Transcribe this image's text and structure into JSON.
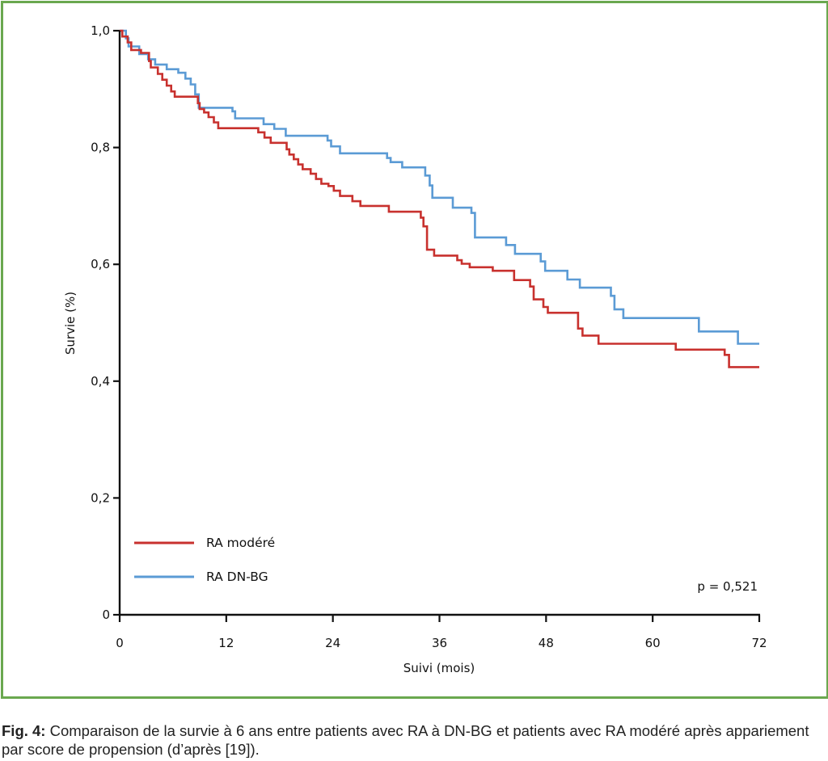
{
  "chart_data": {
    "type": "line",
    "subtype": "kaplan-meier-step",
    "title": "",
    "xlabel": "Suivi (mois)",
    "ylabel": "Survie (%)",
    "xlim": [
      0,
      72
    ],
    "ylim": [
      0,
      1.0
    ],
    "xticks": [
      0,
      12,
      24,
      36,
      48,
      60,
      72
    ],
    "xtick_labels": [
      "0",
      "12",
      "24",
      "36",
      "48",
      "60",
      "72"
    ],
    "yticks": [
      0,
      0.2,
      0.4,
      0.6,
      0.8,
      1.0
    ],
    "ytick_labels": [
      "0",
      "0,2",
      "0,4",
      "0,6",
      "0,8",
      "1,0"
    ],
    "grid": false,
    "legend_position": "bottom-left",
    "annotation": "p = 0,521",
    "series": [
      {
        "name": "RA modéré",
        "color": "#c8312e",
        "points": [
          [
            0,
            1.0
          ],
          [
            0.3,
            0.99
          ],
          [
            0.9,
            0.98
          ],
          [
            1.3,
            0.967
          ],
          [
            2.4,
            0.962
          ],
          [
            3.3,
            0.948
          ],
          [
            3.5,
            0.937
          ],
          [
            4.3,
            0.926
          ],
          [
            4.8,
            0.916
          ],
          [
            5.3,
            0.906
          ],
          [
            5.8,
            0.896
          ],
          [
            6.2,
            0.887
          ],
          [
            8.8,
            0.876
          ],
          [
            9.0,
            0.866
          ],
          [
            9.5,
            0.86
          ],
          [
            10.0,
            0.852
          ],
          [
            10.6,
            0.843
          ],
          [
            11.1,
            0.833
          ],
          [
            15.6,
            0.826
          ],
          [
            16.3,
            0.817
          ],
          [
            17.0,
            0.808
          ],
          [
            18.8,
            0.797
          ],
          [
            19.1,
            0.788
          ],
          [
            19.6,
            0.78
          ],
          [
            20.1,
            0.771
          ],
          [
            20.6,
            0.763
          ],
          [
            21.5,
            0.755
          ],
          [
            22.1,
            0.746
          ],
          [
            22.7,
            0.738
          ],
          [
            23.5,
            0.734
          ],
          [
            24.1,
            0.726
          ],
          [
            24.8,
            0.717
          ],
          [
            26.2,
            0.708
          ],
          [
            27.1,
            0.7
          ],
          [
            30.3,
            0.69
          ],
          [
            33.9,
            0.68
          ],
          [
            34.2,
            0.665
          ],
          [
            34.6,
            0.625
          ],
          [
            35.4,
            0.615
          ],
          [
            38.0,
            0.607
          ],
          [
            38.5,
            0.601
          ],
          [
            39.4,
            0.595
          ],
          [
            42.0,
            0.589
          ],
          [
            44.4,
            0.573
          ],
          [
            46.2,
            0.562
          ],
          [
            46.6,
            0.54
          ],
          [
            47.7,
            0.527
          ],
          [
            48.2,
            0.517
          ],
          [
            51.6,
            0.49
          ],
          [
            52.1,
            0.478
          ],
          [
            53.9,
            0.464
          ],
          [
            62.6,
            0.454
          ],
          [
            68.1,
            0.445
          ],
          [
            68.6,
            0.424
          ],
          [
            72.0,
            0.424
          ]
        ]
      },
      {
        "name": "RA DN-BG",
        "color": "#5b9bd5",
        "points": [
          [
            0,
            1.0
          ],
          [
            0.7,
            0.987
          ],
          [
            1.0,
            0.973
          ],
          [
            2.2,
            0.96
          ],
          [
            3.2,
            0.951
          ],
          [
            4.0,
            0.942
          ],
          [
            5.3,
            0.934
          ],
          [
            6.6,
            0.928
          ],
          [
            7.4,
            0.918
          ],
          [
            8.0,
            0.908
          ],
          [
            8.5,
            0.891
          ],
          [
            8.9,
            0.868
          ],
          [
            12.7,
            0.862
          ],
          [
            13.0,
            0.85
          ],
          [
            16.2,
            0.84
          ],
          [
            17.4,
            0.832
          ],
          [
            18.7,
            0.82
          ],
          [
            23.4,
            0.812
          ],
          [
            23.8,
            0.802
          ],
          [
            24.8,
            0.79
          ],
          [
            30.1,
            0.782
          ],
          [
            30.5,
            0.775
          ],
          [
            31.8,
            0.766
          ],
          [
            34.4,
            0.752
          ],
          [
            34.9,
            0.735
          ],
          [
            35.2,
            0.714
          ],
          [
            37.5,
            0.697
          ],
          [
            39.6,
            0.688
          ],
          [
            40.0,
            0.646
          ],
          [
            43.5,
            0.633
          ],
          [
            44.5,
            0.618
          ],
          [
            47.4,
            0.605
          ],
          [
            47.9,
            0.589
          ],
          [
            50.4,
            0.574
          ],
          [
            51.8,
            0.56
          ],
          [
            55.3,
            0.546
          ],
          [
            55.7,
            0.523
          ],
          [
            56.7,
            0.508
          ],
          [
            65.2,
            0.485
          ],
          [
            69.6,
            0.464
          ],
          [
            72.0,
            0.464
          ]
        ]
      }
    ]
  },
  "caption": {
    "label": "Fig. 4:",
    "text": " Comparaison de la survie à 6 ans entre patients avec RA à DN-BG et patients avec RA modéré après appariement par score de propension (d’après [19])."
  }
}
